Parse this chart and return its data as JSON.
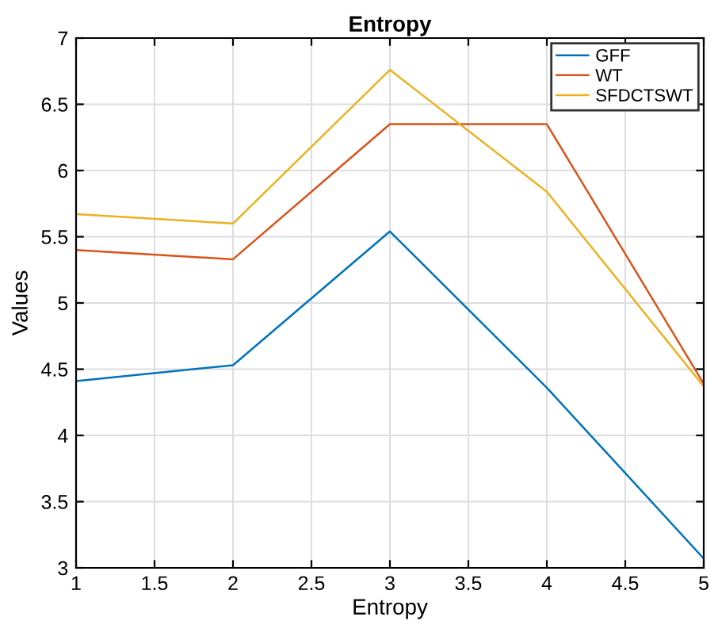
{
  "chart_data": {
    "type": "line",
    "title": "Entropy",
    "xlabel": "Entropy",
    "ylabel": "Values",
    "x": [
      1,
      2,
      3,
      4,
      5
    ],
    "series": [
      {
        "name": "GFF",
        "color": "#0072bd",
        "values": [
          4.41,
          4.53,
          5.54,
          4.36,
          3.07
        ]
      },
      {
        "name": "WT",
        "color": "#d95319",
        "values": [
          5.4,
          5.33,
          6.35,
          6.35,
          4.39
        ]
      },
      {
        "name": "SFDCTSWT",
        "color": "#edb120",
        "values": [
          5.67,
          5.6,
          6.76,
          5.84,
          4.37
        ]
      }
    ],
    "xlim": [
      1,
      5
    ],
    "xticks": [
      1,
      1.5,
      2,
      2.5,
      3,
      3.5,
      4,
      4.5,
      5
    ],
    "ylim": [
      3,
      7
    ],
    "yticks": [
      3,
      3.5,
      4,
      4.5,
      5,
      5.5,
      6,
      6.5,
      7
    ],
    "grid": true,
    "legend": "top right",
    "marker": "none",
    "line_style": "solid"
  }
}
